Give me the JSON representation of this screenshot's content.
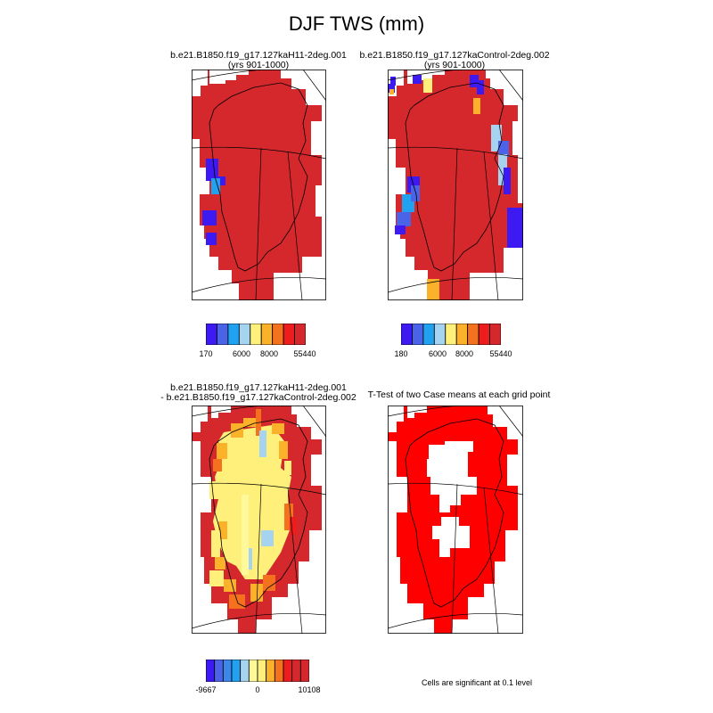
{
  "title": "DJF TWS (mm)",
  "panels": {
    "top_left": {
      "caption_line1": "b.e21.B1850.f19_g17.127kaH11-2deg.001",
      "caption_line2": "(yrs 901-1000)"
    },
    "top_right": {
      "caption_line1": "b.e21.B1850.f19_g17.127kaControl-2deg.002",
      "caption_line2": "(yrs 901-1000)"
    },
    "bottom_left": {
      "caption_line1": "b.e21.B1850.f19_g17.127kaH11-2deg.001",
      "caption_line2": "- b.e21.B1850.f19_g17.127kaControl-2deg.002"
    },
    "bottom_right": {
      "caption": "T-Test of two Case means at each grid point"
    }
  },
  "colorbars": {
    "top_left": {
      "colors": [
        "#3d1af2",
        "#4b63e6",
        "#20a2f0",
        "#a6d4f0",
        "#fef07a",
        "#fcb12a",
        "#f4721e",
        "#ee1d1d",
        "#d4282c"
      ],
      "tick_labels": [
        "170",
        "6000",
        "8000",
        "55440"
      ]
    },
    "top_right": {
      "colors": [
        "#3d1af2",
        "#4b63e6",
        "#20a2f0",
        "#a6d4f0",
        "#fef07a",
        "#fcb12a",
        "#f4721e",
        "#ee1d1d",
        "#d4282c"
      ],
      "tick_labels": [
        "180",
        "6000",
        "8000",
        "55440"
      ]
    },
    "bottom_left": {
      "colors": [
        "#3d1af2",
        "#4b63e6",
        "#3b87ea",
        "#20a2f0",
        "#a6d4f0",
        "#fef99a",
        "#fef07a",
        "#fcb12a",
        "#f4721e",
        "#ee1d1d",
        "#d4282c",
        "#d4282c"
      ],
      "tick_labels": [
        "-9667",
        "0",
        "10108"
      ]
    }
  },
  "significance_note": "Cells are significant at 0.1 level"
}
